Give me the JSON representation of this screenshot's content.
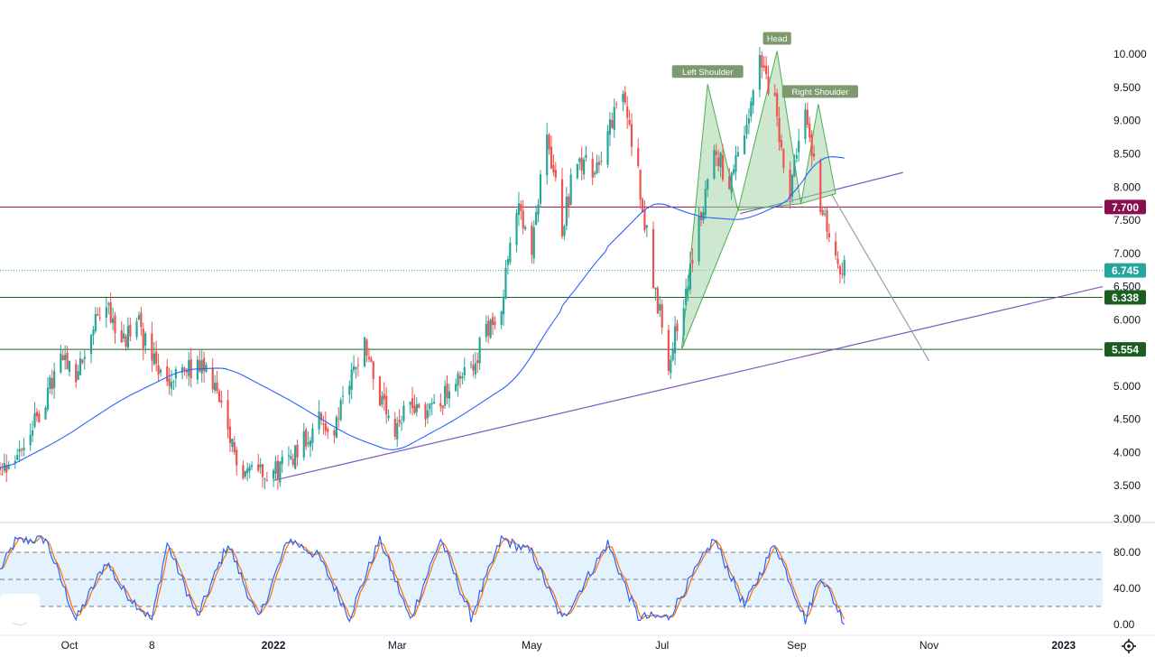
{
  "chart_data": {
    "type": "candlestick",
    "price_axis": {
      "range": [
        3.0,
        10.2
      ],
      "ticks": [
        "10.000",
        "9.500",
        "9.000",
        "8.500",
        "8.000",
        "7.500",
        "7.000",
        "6.500",
        "6.000",
        "5.500",
        "5.000",
        "4.500",
        "4.000",
        "3.500",
        "3.000"
      ]
    },
    "time_axis": {
      "range": [
        "2021-08-30",
        "2023-01-20"
      ],
      "labels": [
        {
          "text": "Oct",
          "date": "2021-10-01",
          "bold": false
        },
        {
          "text": "8",
          "date": "2021-11-08",
          "bold": false
        },
        {
          "text": "2022",
          "date": "2022-01-03",
          "bold": true
        },
        {
          "text": "Mar",
          "date": "2022-03-01",
          "bold": false
        },
        {
          "text": "May",
          "date": "2022-05-02",
          "bold": false
        },
        {
          "text": "Jul",
          "date": "2022-07-01",
          "bold": false
        },
        {
          "text": "Sep",
          "date": "2022-09-01",
          "bold": false
        },
        {
          "text": "Nov",
          "date": "2022-11-01",
          "bold": false
        },
        {
          "text": "2023",
          "date": "2023-01-02",
          "bold": true
        }
      ]
    },
    "candles_close_path": [
      [
        "2021-08-30",
        3.8
      ],
      [
        "2021-09-06",
        3.92
      ],
      [
        "2021-09-13",
        4.3
      ],
      [
        "2021-09-20",
        4.8
      ],
      [
        "2021-09-27",
        5.4
      ],
      [
        "2021-10-04",
        5.1
      ],
      [
        "2021-10-11",
        5.8
      ],
      [
        "2021-10-18",
        6.3
      ],
      [
        "2021-10-25",
        5.6
      ],
      [
        "2021-11-01",
        6.0
      ],
      [
        "2021-11-08",
        5.4
      ],
      [
        "2021-11-15",
        5.0
      ],
      [
        "2021-11-22",
        5.2
      ],
      [
        "2021-11-29",
        5.3
      ],
      [
        "2021-12-06",
        5.1
      ],
      [
        "2021-12-13",
        4.2
      ],
      [
        "2021-12-20",
        3.75
      ],
      [
        "2021-12-27",
        3.8
      ],
      [
        "2022-01-03",
        3.7
      ],
      [
        "2022-01-10",
        3.9
      ],
      [
        "2022-01-17",
        4.2
      ],
      [
        "2022-01-24",
        4.5
      ],
      [
        "2022-01-31",
        4.3
      ],
      [
        "2022-02-07",
        5.1
      ],
      [
        "2022-02-14",
        5.7
      ],
      [
        "2022-02-21",
        4.8
      ],
      [
        "2022-02-28",
        4.2
      ],
      [
        "2022-03-07",
        4.8
      ],
      [
        "2022-03-14",
        4.6
      ],
      [
        "2022-03-21",
        4.8
      ],
      [
        "2022-03-28",
        5.0
      ],
      [
        "2022-04-04",
        5.3
      ],
      [
        "2022-04-11",
        5.8
      ],
      [
        "2022-04-18",
        6.3
      ],
      [
        "2022-04-25",
        7.7
      ],
      [
        "2022-05-02",
        7.0
      ],
      [
        "2022-05-09",
        8.8
      ],
      [
        "2022-05-16",
        7.4
      ],
      [
        "2022-05-23",
        8.5
      ],
      [
        "2022-05-30",
        8.2
      ],
      [
        "2022-06-06",
        8.8
      ],
      [
        "2022-06-13",
        9.4
      ],
      [
        "2022-06-20",
        8.2
      ],
      [
        "2022-06-27",
        6.6
      ],
      [
        "2022-07-04",
        5.4
      ],
      [
        "2022-07-11",
        6.3
      ],
      [
        "2022-07-18",
        7.4
      ],
      [
        "2022-07-25",
        8.6
      ],
      [
        "2022-08-01",
        8.0
      ],
      [
        "2022-08-08",
        8.7
      ],
      [
        "2022-08-15",
        9.9
      ],
      [
        "2022-08-22",
        9.2
      ],
      [
        "2022-08-29",
        7.9
      ],
      [
        "2022-09-05",
        9.1
      ],
      [
        "2022-09-12",
        7.8
      ],
      [
        "2022-09-19",
        6.8
      ],
      [
        "2022-09-23",
        6.745
      ]
    ],
    "moving_average": {
      "color": "#2962ff",
      "points": [
        [
          "2021-08-30",
          3.72
        ],
        [
          "2021-09-27",
          4.2
        ],
        [
          "2021-10-25",
          4.8
        ],
        [
          "2021-11-22",
          5.25
        ],
        [
          "2021-12-13",
          5.28
        ],
        [
          "2022-01-10",
          4.8
        ],
        [
          "2022-02-07",
          4.25
        ],
        [
          "2022-02-28",
          4.0
        ],
        [
          "2022-03-28",
          4.5
        ],
        [
          "2022-04-25",
          5.1
        ],
        [
          "2022-05-16",
          6.2
        ],
        [
          "2022-06-06",
          7.1
        ],
        [
          "2022-06-27",
          7.8
        ],
        [
          "2022-07-18",
          7.55
        ],
        [
          "2022-08-08",
          7.5
        ],
        [
          "2022-08-29",
          7.8
        ],
        [
          "2022-09-12",
          8.5
        ],
        [
          "2022-09-23",
          8.42
        ]
      ]
    },
    "horizontal_levels": [
      {
        "value": 7.7,
        "label": "7.700",
        "color": "#880e4f",
        "style": "solid"
      },
      {
        "value": 6.745,
        "label": "6.745",
        "color": "#26a69a",
        "style": "dotted"
      },
      {
        "value": 6.338,
        "label": "6.338",
        "color": "#1b5e20",
        "style": "solid"
      },
      {
        "value": 5.554,
        "label": "5.554",
        "color": "#1b5e20",
        "style": "solid"
      }
    ],
    "trendlines": [
      {
        "color": "#7e57c2",
        "from": [
          "2022-01-03",
          3.58
        ],
        "to": [
          "2023-01-20",
          6.5
        ]
      },
      {
        "color": "#7e57c2",
        "from": [
          "2022-08-06",
          7.6
        ],
        "to": [
          "2022-10-20",
          8.22
        ]
      },
      {
        "color": "#9e9e9e",
        "from": [
          "2022-09-17",
          7.9
        ],
        "to": [
          "2022-11-01",
          5.38
        ]
      }
    ],
    "pattern": {
      "labels": [
        "Left Shoulder",
        "Head",
        "Right Shoulder"
      ],
      "points": [
        [
          "2022-07-10",
          5.55
        ],
        [
          "2022-07-22",
          9.55
        ],
        [
          "2022-08-05",
          7.65
        ],
        [
          "2022-08-23",
          10.05
        ],
        [
          "2022-09-03",
          7.75
        ],
        [
          "2022-09-11",
          9.25
        ],
        [
          "2022-09-19",
          7.9
        ]
      ]
    },
    "stochastic": {
      "levels": [
        80,
        50,
        20
      ],
      "ticks": [
        "80.00",
        "40.00",
        "0.00"
      ],
      "k": [
        [
          "2021-08-30",
          60
        ],
        [
          "2021-09-06",
          92
        ],
        [
          "2021-09-20",
          95
        ],
        [
          "2021-10-04",
          5
        ],
        [
          "2021-10-18",
          70
        ],
        [
          "2021-10-25",
          40
        ],
        [
          "2021-11-08",
          5
        ],
        [
          "2021-11-15",
          90
        ],
        [
          "2021-11-29",
          8
        ],
        [
          "2021-12-13",
          90
        ],
        [
          "2021-12-27",
          5
        ],
        [
          "2022-01-10",
          95
        ],
        [
          "2022-01-24",
          75
        ],
        [
          "2022-02-07",
          8
        ],
        [
          "2022-02-21",
          95
        ],
        [
          "2022-03-07",
          5
        ],
        [
          "2022-03-21",
          95
        ],
        [
          "2022-04-04",
          8
        ],
        [
          "2022-04-18",
          95
        ],
        [
          "2022-05-02",
          80
        ],
        [
          "2022-05-16",
          5
        ],
        [
          "2022-06-06",
          90
        ],
        [
          "2022-06-20",
          8
        ],
        [
          "2022-07-04",
          8
        ],
        [
          "2022-07-25",
          95
        ],
        [
          "2022-08-08",
          20
        ],
        [
          "2022-08-22",
          90
        ],
        [
          "2022-09-05",
          5
        ],
        [
          "2022-09-12",
          55
        ],
        [
          "2022-09-23",
          3
        ]
      ]
    },
    "colors": {
      "up": "#26a69a",
      "down": "#ef5350",
      "ma": "#2962ff",
      "pattern_fill": "#a5d6a7",
      "pattern_line": "#4caf50",
      "label_bg": "#7d9a6e",
      "stoch_k": "#2962ff",
      "stoch_d": "#ff6d00",
      "stoch_band": "#e3f2fd"
    }
  }
}
